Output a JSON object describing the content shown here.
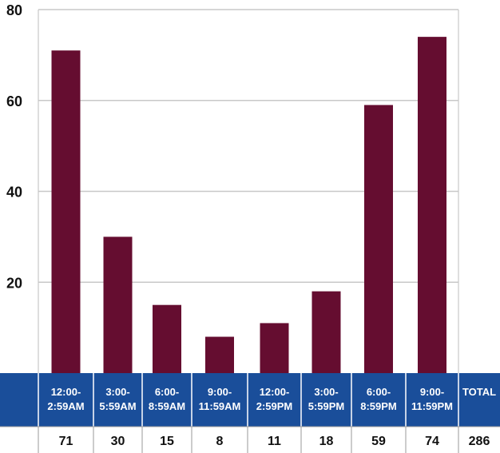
{
  "chart_data": {
    "type": "bar",
    "title": "",
    "xlabel": "",
    "ylabel": "",
    "ylim": [
      0,
      80
    ],
    "yticks": [
      20,
      40,
      60,
      80
    ],
    "grid": true,
    "categories": [
      [
        "12:00-",
        "2:59AM"
      ],
      [
        "3:00-",
        "5:59AM"
      ],
      [
        "6:00-",
        "8:59AM"
      ],
      [
        "9:00-",
        "11:59AM"
      ],
      [
        "12:00-",
        "2:59PM"
      ],
      [
        "3:00-",
        "5:59PM"
      ],
      [
        "6:00-",
        "8:59PM"
      ],
      [
        "9:00-",
        "11:59PM"
      ]
    ],
    "values": [
      71,
      30,
      15,
      8,
      11,
      18,
      59,
      74
    ],
    "value_labels": [
      "71",
      "30",
      "15",
      "8",
      "11",
      "18",
      "59",
      "74"
    ],
    "total_label": "TOTAL",
    "total_value": "286",
    "colors": {
      "bar": "#650d30",
      "header": "#1a4e9a",
      "grid": "#c8c8c8"
    }
  }
}
